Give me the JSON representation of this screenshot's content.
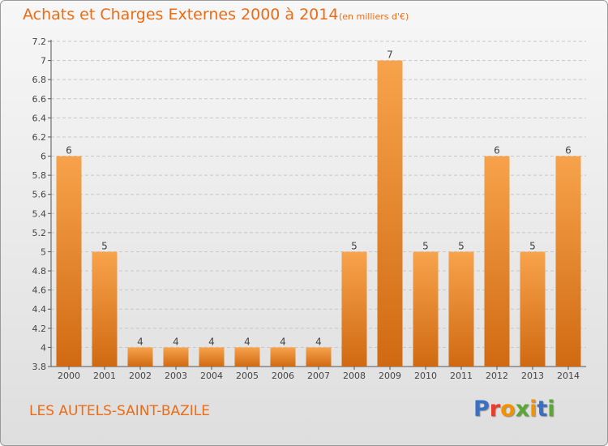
{
  "header": {
    "title": "Achats et Charges Externes 2000 à 2014",
    "subtitle": "(en milliers d'€)"
  },
  "footer": {
    "location": "LES AUTELS-SAINT-BAZILE",
    "brand": "Proxiti"
  },
  "colors": {
    "title": "#ec6c15",
    "bar_light": "#f7a34c",
    "bar_dark": "#d06a12",
    "grid": "#c8c8c8",
    "brand_letters": [
      "#3a6fc4",
      "#e63d2e",
      "#f29200",
      "#5aa832",
      "#f29200",
      "#3a6fc4",
      "#5aa832"
    ]
  },
  "chart_data": {
    "type": "bar",
    "title": "Achats et Charges Externes 2000 à 2014",
    "subtitle": "(en milliers d'€)",
    "xlabel": "",
    "ylabel": "",
    "ylim": [
      3.8,
      7.2
    ],
    "yticks": [
      3.8,
      4,
      4.2,
      4.4,
      4.6,
      4.8,
      5,
      5.2,
      5.4,
      5.6,
      5.8,
      6,
      6.2,
      6.4,
      6.6,
      6.8,
      7,
      7.2
    ],
    "ytick_labels": [
      "3.8",
      "4",
      "4.2",
      "4.4",
      "4.6",
      "4.8",
      "5",
      "5.2",
      "5.4",
      "5.6",
      "5.8",
      "6",
      "6.2",
      "6.4",
      "6.6",
      "6.8",
      "7",
      "7.2"
    ],
    "categories": [
      "2000",
      "2001",
      "2002",
      "2003",
      "2004",
      "2005",
      "2006",
      "2007",
      "2008",
      "2009",
      "2010",
      "2011",
      "2012",
      "2013",
      "2014"
    ],
    "values": [
      6,
      5,
      4,
      4,
      4,
      4,
      4,
      4,
      5,
      7,
      5,
      5,
      6,
      5,
      6
    ],
    "value_labels": [
      "6",
      "5",
      "4",
      "4",
      "4",
      "4",
      "4",
      "4",
      "5",
      "7",
      "5",
      "5",
      "6",
      "5",
      "6"
    ],
    "grid": true,
    "legend": "none"
  }
}
